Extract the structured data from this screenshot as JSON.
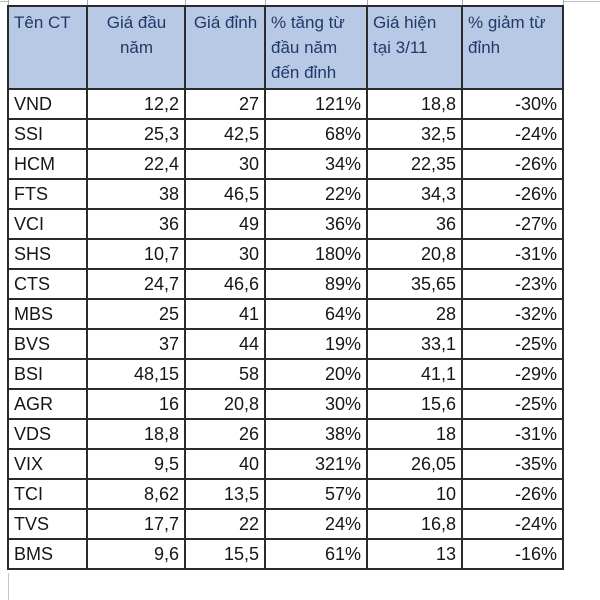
{
  "theme": {
    "header_bg": "#b8c9e6",
    "header_fg": "#1f3a68",
    "cell_fg": "#161616",
    "grid": "#2b2b2b",
    "faint": "#c3c6cb"
  },
  "table": {
    "columns": [
      {
        "label": "Tên CT",
        "align": "left"
      },
      {
        "label": "Giá đầu năm",
        "align": "center"
      },
      {
        "label": "Giá đỉnh",
        "align": "center"
      },
      {
        "label": "% tăng từ đầu năm đến đỉnh",
        "align": "left"
      },
      {
        "label": "Giá hiện tại 3/11",
        "align": "left"
      },
      {
        "label": "% giảm từ đỉnh",
        "align": "left"
      }
    ],
    "rows": [
      [
        "VND",
        "12,2",
        "27",
        "121%",
        "18,8",
        "-30%"
      ],
      [
        "SSI",
        "25,3",
        "42,5",
        "68%",
        "32,5",
        "-24%"
      ],
      [
        "HCM",
        "22,4",
        "30",
        "34%",
        "22,35",
        "-26%"
      ],
      [
        "FTS",
        "38",
        "46,5",
        "22%",
        "34,3",
        "-26%"
      ],
      [
        "VCI",
        "36",
        "49",
        "36%",
        "36",
        "-27%"
      ],
      [
        "SHS",
        "10,7",
        "30",
        "180%",
        "20,8",
        "-31%"
      ],
      [
        "CTS",
        "24,7",
        "46,6",
        "89%",
        "35,65",
        "-23%"
      ],
      [
        "MBS",
        "25",
        "41",
        "64%",
        "28",
        "-32%"
      ],
      [
        "BVS",
        "37",
        "44",
        "19%",
        "33,1",
        "-25%"
      ],
      [
        "BSI",
        "48,15",
        "58",
        "20%",
        "41,1",
        "-29%"
      ],
      [
        "AGR",
        "16",
        "20,8",
        "30%",
        "15,6",
        "-25%"
      ],
      [
        "VDS",
        "18,8",
        "26",
        "38%",
        "18",
        "-31%"
      ],
      [
        "VIX",
        "9,5",
        "40",
        "321%",
        "26,05",
        "-35%"
      ],
      [
        "TCI",
        "8,62",
        "13,5",
        "57%",
        "10",
        "-26%"
      ],
      [
        "TVS",
        "17,7",
        "22",
        "24%",
        "16,8",
        "-24%"
      ],
      [
        "BMS",
        "9,6",
        "15,5",
        "61%",
        "13",
        "-16%"
      ]
    ]
  }
}
